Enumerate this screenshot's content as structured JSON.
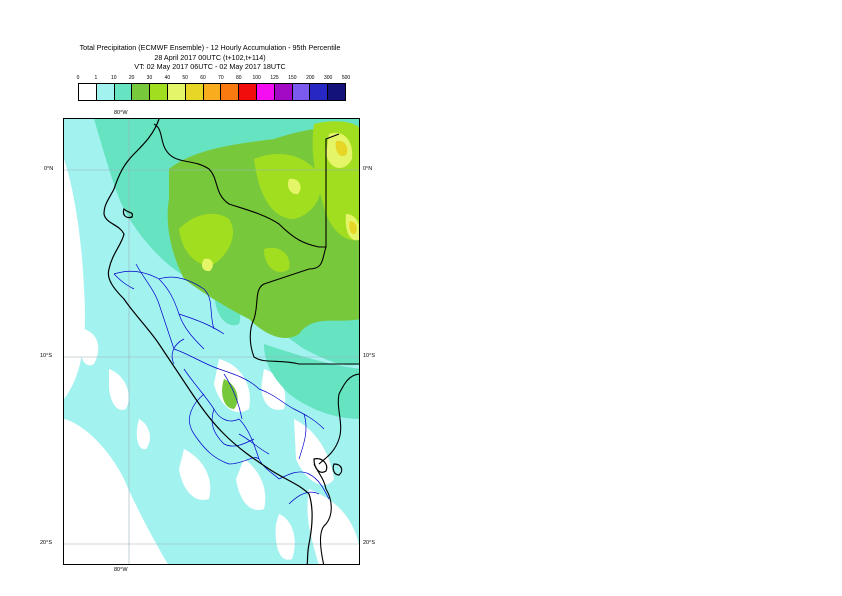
{
  "title": {
    "line1": "Total Precipitation (ECMWF Ensemble) - 12 Hourly Accumulation - 95th Percentile",
    "line2": "28 April 2017 00UTC (t+102,t+114)",
    "line3": "VT: 02 May 2017 06UTC - 02 May 2017 18UTC"
  },
  "legend": {
    "levels": [
      "0",
      "1",
      "10",
      "20",
      "30",
      "40",
      "50",
      "60",
      "70",
      "80",
      "100",
      "125",
      "150",
      "200",
      "300",
      "500"
    ],
    "colors": [
      "#ffffff",
      "#a2f2f0",
      "#66e3c1",
      "#78c83c",
      "#a2de20",
      "#e4f567",
      "#e8d626",
      "#f7ad1e",
      "#fa7a10",
      "#f20d0d",
      "#f50ef2",
      "#a30ac6",
      "#7b5af0",
      "#2727c4",
      "#12127a"
    ]
  },
  "map": {
    "lon_top": "80°W",
    "lon_bottom": "80°W",
    "lat_labels": [
      "0°N",
      "10°S",
      "20°S"
    ],
    "base_fill": "#a2f2f0",
    "dry_fill": "#ffffff",
    "moderate_fill": "#66e3c1",
    "heavy_fill": "#78c83c",
    "very_heavy_fill": "#a2de20",
    "peak_fill": "#e4f567",
    "extreme_fill": "#e8d626",
    "coast_color": "#000000",
    "border_color": "#000000",
    "admin_color": "#0000cc",
    "grid_color": "#9ab0bb"
  }
}
